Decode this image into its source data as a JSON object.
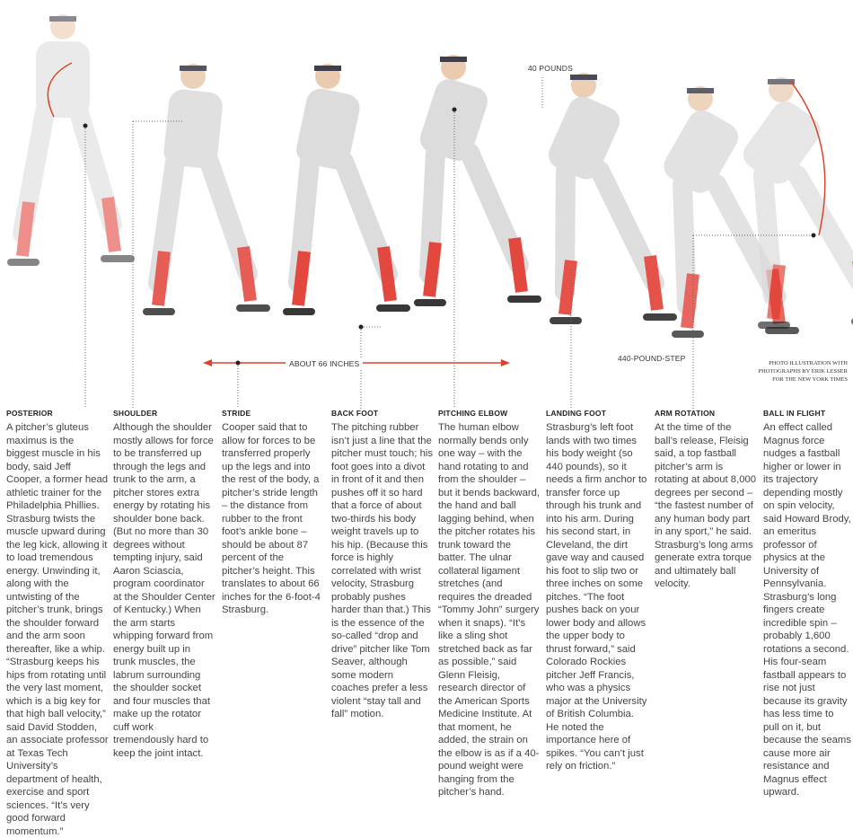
{
  "labels": {
    "weight": "40 POUNDS",
    "stride_length": "ABOUT 66 INCHES",
    "step": "440-POUND-STEP",
    "credit": [
      "PHOTO ILLUSTRATION WITH",
      "PHOTOGRAPHS BY ERIK LESSER",
      "FOR THE NEW YORK TIMES"
    ]
  },
  "colors": {
    "accent": "#d9452b",
    "uniform": "#d9d9d9",
    "socks": "#e0352b"
  },
  "columns": [
    {
      "title": "POSTERIOR",
      "text": "A pitcher’s gluteus maximus is the biggest muscle in his body, said Jeff Cooper, a former head athletic trainer for the Philadelphia Phillies. Strasburg twists the muscle upward during the leg kick, allowing it to load tremendous energy. Unwinding it, along with the untwisting of the pitcher’s trunk, brings the shoulder forward and the arm soon thereafter, like a whip. “Strasburg keeps his hips from rotating until the very last moment, which is a big key for that high ball velocity,” said David Stodden, an associate professor at Texas Tech University’s department of health, exercise and sport sciences. “It’s very good forward momentum.”"
    },
    {
      "title": "SHOULDER",
      "text": "Although the shoulder mostly allows for force to be transferred up through the legs and trunk to the arm, a pitcher stores extra energy by rotating his shoulder bone back. (But no more than 30 degrees without tempting injury, said Aaron Sciascia, program coordinator at the Shoulder Center of Kentucky.) When the arm starts whipping forward from energy built up in trunk muscles, the labrum surrounding the shoulder socket and four muscles that make up the rotator cuff work tremendously hard to keep the joint intact."
    },
    {
      "title": "STRIDE",
      "text": "Cooper said that to allow for forces to be transferred properly up the legs and into the rest of the body, a pitcher’s stride length – the distance from rubber to the front foot’s ankle bone – should be about 87 percent of the pitcher’s height. This translates to about 66 inches for the 6-foot-4 Strasburg."
    },
    {
      "title": "BACK FOOT",
      "text": "The pitching rubber isn’t just a line that the pitcher must touch; his foot goes into a divot in front of it and then pushes off it so hard that a force of about two-thirds his body weight travels up to his hip. (Because this force is highly correlated with wrist velocity, Strasburg probably pushes harder than that.) This is the essence of the so-called “drop and drive” pitcher like Tom Seaver, although some modern coaches prefer a less violent “stay tall and fall” motion."
    },
    {
      "title": "PITCHING ELBOW",
      "text": "The human elbow normally bends only one way – with the hand rotating to and from the shoulder – but it bends backward, the hand and ball lagging behind, when the pitcher rotates his trunk toward the batter. The ulnar collateral ligament stretches (and requires the dreaded “Tommy John” surgery when it snaps). “It’s like a sling shot stretched back as far as possible,” said Glenn Fleisig, research director of the American Sports Medicine Institute. At that moment, he added, the strain on the elbow is as if a 40-pound weight were hanging from the pitcher’s hand."
    },
    {
      "title": "LANDING FOOT",
      "text": "Strasburg’s left foot lands with two times his body weight (so 440 pounds), so it needs a firm anchor to transfer force up through his trunk and into his arm. During his second start, in Cleveland, the dirt gave way and caused his foot to slip two or three inches on some pitches. “The foot pushes back on your lower body and allows the upper body to thrust forward,” said Colorado Rockies pitcher Jeff Francis, who was a physics major at the University of British Columbia. He noted the importance here of spikes. “You can’t just rely on friction.”"
    },
    {
      "title": "ARM ROTATION",
      "text": "At the time of the ball’s release, Fleisig said, a top fastball pitcher’s arm is rotating at about 8,000 degrees per second – “the fastest number of any human body part in any sport,” he said. Strasburg’s long arms generate extra torque and ultimately ball velocity."
    },
    {
      "title": "BALL IN FLIGHT",
      "text": "An effect called Magnus force nudges a fastball higher or lower in its trajectory depending mostly on spin velocity, said Howard Brody, an emeritus professor of physics at the University of Pennsylvania. Strasburg’s long fingers create incredible spin – probably 1,600 rotations a second. His four-seam fastball appears to rise not just because its gravity has less time to pull on it, but because the seams cause more air resistance and Magnus effect upward."
    }
  ]
}
